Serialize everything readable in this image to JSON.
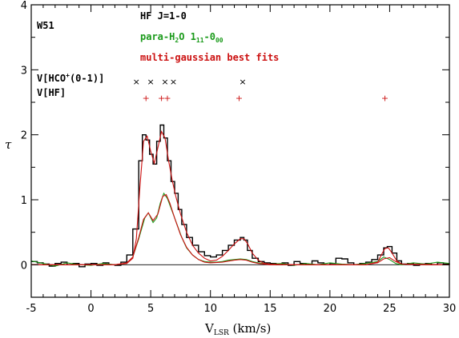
{
  "chart_data": {
    "type": "line",
    "panel_label": "W51",
    "xlabel": {
      "main": "V",
      "sub": "LSR",
      "rest": " (km/s)"
    },
    "ylabel": "τ",
    "xlim": [
      -5,
      30
    ],
    "ylim": [
      -0.5,
      4
    ],
    "x_ticks": [
      -5,
      0,
      5,
      10,
      15,
      20,
      25,
      30
    ],
    "y_ticks": [
      0,
      1,
      2,
      3,
      4
    ],
    "grid": false,
    "legend_placement": "top-center",
    "colors": {
      "hf": "#000000",
      "water": "#1a9a1a",
      "fit": "#cc1111",
      "zero": "#000000"
    },
    "legend": {
      "hf": "HF J=1-0",
      "water": {
        "pre": "para-H",
        "sub1": "2",
        "mid": "O 1",
        "sub2": "11",
        "dash": "-0",
        "sub3": "00"
      },
      "fit": "multi-gaussian best fits"
    },
    "marker_labels": {
      "hco": {
        "pre": "V[HCO",
        "sup": "+",
        "post": "(0-1)]"
      },
      "hf": "V[HF]"
    },
    "markers": {
      "hco": {
        "y": 2.82,
        "x": [
          3.8,
          5.0,
          6.2,
          6.9,
          12.7
        ],
        "symbol": "×",
        "color": "#000000"
      },
      "hf": {
        "y": 2.57,
        "x": [
          4.6,
          5.9,
          6.4,
          12.4,
          24.6
        ],
        "symbol": "+",
        "color": "#cc1111"
      }
    },
    "series": [
      {
        "key": "hf",
        "name": "HF J=1-0",
        "step": true,
        "x": [
          -5,
          -4.5,
          -4,
          -3.5,
          -3,
          -2.5,
          -2,
          -1.5,
          -1,
          -0.5,
          0,
          0.5,
          1,
          1.5,
          2,
          2.5,
          3,
          3.5,
          4,
          4.3,
          4.6,
          4.9,
          5.2,
          5.5,
          5.8,
          6.1,
          6.4,
          6.7,
          7,
          7.3,
          7.6,
          8,
          8.5,
          9,
          9.5,
          10,
          10.5,
          11,
          11.5,
          12,
          12.5,
          12.8,
          13.1,
          13.5,
          14,
          14.5,
          15,
          15.5,
          16,
          16.5,
          17,
          17.5,
          18,
          18.5,
          19,
          19.5,
          20,
          20.5,
          21,
          21.5,
          22,
          22.5,
          23,
          23.5,
          24,
          24.5,
          24.8,
          25.2,
          25.6,
          26,
          26.5,
          27,
          27.5,
          28,
          28.5,
          29,
          29.5,
          30
        ],
        "y": [
          0.05,
          0.03,
          0.01,
          -0.02,
          0.02,
          0.04,
          0.0,
          0.02,
          -0.03,
          0.01,
          0.02,
          -0.01,
          0.03,
          0.0,
          -0.01,
          0.04,
          0.15,
          0.55,
          1.6,
          2.0,
          1.92,
          1.7,
          1.55,
          1.9,
          2.15,
          1.95,
          1.6,
          1.28,
          1.1,
          0.85,
          0.62,
          0.42,
          0.3,
          0.2,
          0.14,
          0.12,
          0.15,
          0.22,
          0.3,
          0.38,
          0.42,
          0.38,
          0.22,
          0.1,
          0.05,
          0.03,
          0.02,
          0.0,
          0.03,
          -0.01,
          0.05,
          0.02,
          0.0,
          0.06,
          0.03,
          0.0,
          0.02,
          0.1,
          0.09,
          0.03,
          0.0,
          0.02,
          0.04,
          0.08,
          0.15,
          0.26,
          0.28,
          0.18,
          0.06,
          0.01,
          0.02,
          -0.01,
          0.01,
          0.02,
          0.0,
          0.03,
          0.01,
          0.02
        ]
      },
      {
        "key": "water",
        "name": "para-H2O 111-000",
        "step": false,
        "x": [
          -5,
          -4,
          -3,
          -2,
          -1,
          0,
          1,
          2,
          3,
          3.5,
          4,
          4.5,
          4.8,
          5.2,
          5.5,
          5.8,
          6.1,
          6.4,
          6.8,
          7.2,
          7.6,
          8,
          8.5,
          9,
          9.5,
          10,
          10.5,
          11,
          11.5,
          12,
          12.5,
          13,
          13.5,
          14,
          15,
          16,
          17,
          18,
          19,
          20,
          21,
          22,
          23,
          24,
          24.5,
          25,
          25.5,
          26,
          27,
          28,
          29,
          30
        ],
        "y": [
          0.06,
          0.02,
          -0.02,
          0.03,
          0.0,
          -0.01,
          0.02,
          0.0,
          0.02,
          0.12,
          0.4,
          0.72,
          0.8,
          0.65,
          0.72,
          0.95,
          1.1,
          1.02,
          0.82,
          0.62,
          0.42,
          0.26,
          0.15,
          0.08,
          0.05,
          0.04,
          0.04,
          0.05,
          0.07,
          0.08,
          0.09,
          0.08,
          0.05,
          0.03,
          0.01,
          0.02,
          -0.01,
          0.02,
          0.0,
          0.03,
          0.01,
          0.0,
          0.02,
          0.05,
          0.12,
          0.08,
          0.02,
          0.0,
          0.03,
          0.01,
          0.04,
          0.02
        ]
      },
      {
        "key": "fit",
        "name": "multi-gaussian best fits",
        "step": false,
        "x": [
          -5,
          -3,
          -1,
          1,
          2,
          3,
          3.5,
          3.8,
          4.1,
          4.4,
          4.7,
          5.0,
          5.3,
          5.6,
          5.9,
          6.2,
          6.5,
          6.8,
          7.1,
          7.5,
          8,
          8.5,
          9,
          9.5,
          10,
          10.5,
          11,
          11.5,
          12,
          12.5,
          12.8,
          13.1,
          13.5,
          14,
          14.5,
          15,
          17,
          19,
          21,
          23,
          24,
          24.3,
          24.6,
          24.9,
          25.2,
          25.6,
          26,
          28,
          30
        ],
        "y": [
          0,
          0,
          0,
          0,
          0,
          0.02,
          0.1,
          0.4,
          1.2,
          1.9,
          1.98,
          1.75,
          1.56,
          1.8,
          2.05,
          1.95,
          1.6,
          1.3,
          1.05,
          0.78,
          0.5,
          0.3,
          0.18,
          0.1,
          0.06,
          0.07,
          0.13,
          0.22,
          0.32,
          0.4,
          0.4,
          0.33,
          0.18,
          0.07,
          0.02,
          0.01,
          0,
          0,
          0,
          0,
          0.04,
          0.15,
          0.25,
          0.26,
          0.18,
          0.06,
          0.01,
          0,
          0
        ]
      },
      {
        "key": "water-fit",
        "name": "",
        "step": false,
        "x": [
          -5,
          -1,
          2,
          3,
          3.5,
          4,
          4.4,
          4.8,
          5.2,
          5.6,
          6.0,
          6.3,
          6.6,
          7,
          7.5,
          8,
          8.5,
          9,
          9.5,
          10,
          11,
          12,
          12.5,
          13,
          13.5,
          14,
          15,
          23,
          24,
          24.5,
          25,
          25.5,
          26,
          30
        ],
        "y": [
          0,
          0,
          0,
          0.03,
          0.12,
          0.42,
          0.7,
          0.8,
          0.68,
          0.78,
          1.05,
          1.08,
          0.95,
          0.72,
          0.46,
          0.27,
          0.15,
          0.08,
          0.04,
          0.03,
          0.04,
          0.07,
          0.08,
          0.07,
          0.04,
          0.02,
          0,
          0,
          0.03,
          0.09,
          0.11,
          0.05,
          0.01,
          0
        ]
      }
    ]
  }
}
